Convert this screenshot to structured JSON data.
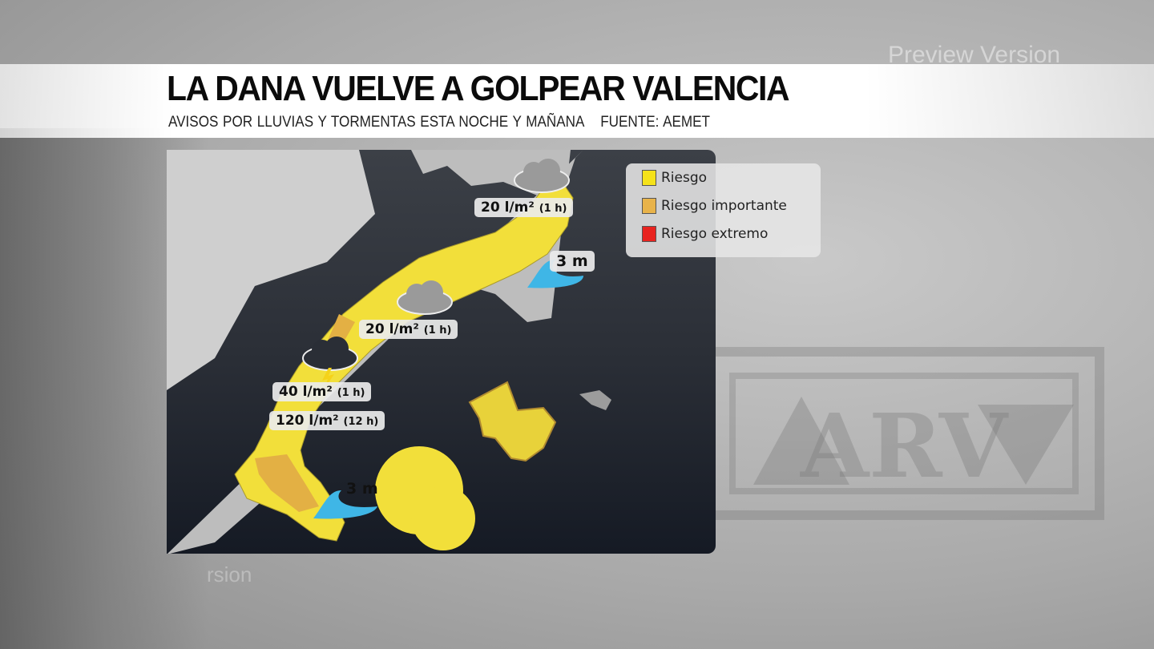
{
  "watermark": "Preview Version",
  "watermark_fragment": "rsion",
  "header": {
    "title": "LA DANA VUELVE A GOLPEAR VALENCIA",
    "subtitle": "AVISOS POR LLUVIAS Y TORMENTAS ESTA NOCHE Y MAÑANA",
    "source": "FUENTE: AEMET"
  },
  "legend": {
    "items": [
      {
        "label": "Riesgo",
        "color": "#f5e21a"
      },
      {
        "label": "Riesgo importante",
        "color": "#e8b34a"
      },
      {
        "label": "Riesgo extremo",
        "color": "#e8231f"
      }
    ]
  },
  "map_labels": {
    "north_rain": {
      "value": "20 l/m²",
      "period": "(1 h)",
      "icon": "rain-cloud-icon"
    },
    "mid_rain": {
      "value": "20 l/m²",
      "period": "(1 h)",
      "icon": "rain-cloud-icon"
    },
    "south_storm_1h": {
      "value": "40 l/m²",
      "period": "(1 h)",
      "icon": "storm-cloud-icon"
    },
    "south_storm_12h": {
      "value": "120 l/m²",
      "period": "(12 h)"
    },
    "wave_north": {
      "value": "3 m",
      "icon": "wave-icon"
    },
    "wave_south": {
      "value": "3 m",
      "icon": "wave-icon"
    }
  },
  "logo": "ARV",
  "colors": {
    "sea": "#1c212b",
    "land": "#c8c8c8",
    "warning_yellow": "#f5e21a",
    "warning_orange": "#e8b34a",
    "wave": "#3fb6e6"
  }
}
